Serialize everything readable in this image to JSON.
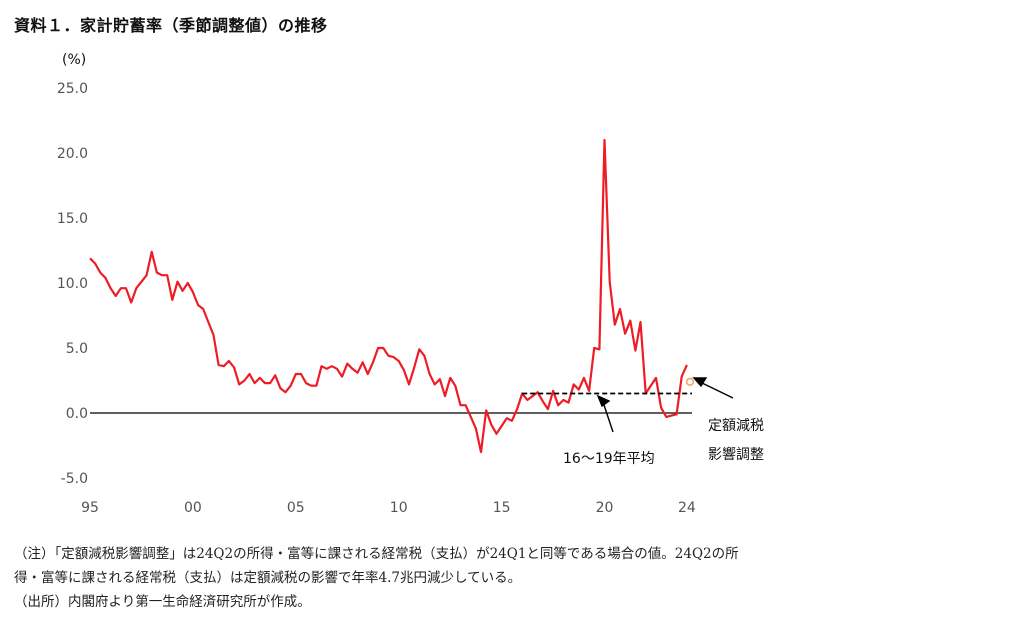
{
  "title": "資料１．家計貯蓄率（季節調整値）の推移",
  "notes": {
    "line1": "（注）「定額減税影響調整」は24Q2の所得・富等に課される経常税（支払）が24Q1と同等である場合の値。24Q2の所",
    "line2": "得・富等に課される経常税（支払）は定額減税の影響で年率4.7兆円減少している。",
    "line3": "（出所）内閣府より第一生命経済研究所が作成。"
  },
  "chart_data": {
    "type": "line",
    "ylabel": "(%)",
    "ylim": [
      -5,
      25
    ],
    "xlim": [
      1995,
      2024.25
    ],
    "y_ticks": [
      "25.0",
      "20.0",
      "15.0",
      "10.0",
      "5.0",
      "0.0",
      "-5.0"
    ],
    "y_tick_values": [
      25,
      20,
      15,
      10,
      5,
      0,
      -5
    ],
    "x_ticks": [
      "95",
      "00",
      "05",
      "10",
      "15",
      "20",
      "24"
    ],
    "x_tick_values": [
      1995,
      2000,
      2005,
      2010,
      2015,
      2020,
      2024
    ],
    "grid": false,
    "series_color": "#ee1c25",
    "zero_line_color": "#000000",
    "quarters_start": "1995Q1",
    "values": [
      11.9,
      11.5,
      10.8,
      10.4,
      9.6,
      9.0,
      9.6,
      9.6,
      8.5,
      9.6,
      10.1,
      10.6,
      12.4,
      10.8,
      10.6,
      10.6,
      8.7,
      10.1,
      9.4,
      10.0,
      9.3,
      8.3,
      8.0,
      7.0,
      6.0,
      3.7,
      3.6,
      4.0,
      3.5,
      2.2,
      2.5,
      3.0,
      2.3,
      2.7,
      2.3,
      2.3,
      2.9,
      1.9,
      1.6,
      2.1,
      3.0,
      3.0,
      2.3,
      2.1,
      2.1,
      3.6,
      3.4,
      3.6,
      3.4,
      2.8,
      3.8,
      3.4,
      3.1,
      3.9,
      3.0,
      3.9,
      5.0,
      5.0,
      4.4,
      4.3,
      4.0,
      3.3,
      2.2,
      3.5,
      4.9,
      4.4,
      3.0,
      2.2,
      2.6,
      1.3,
      2.7,
      2.1,
      0.6,
      0.6,
      -0.3,
      -1.2,
      -3.0,
      0.2,
      -0.9,
      -1.6,
      -1.0,
      -0.4,
      -0.6,
      0.3,
      1.5,
      1.0,
      1.3,
      1.6,
      0.9,
      0.3,
      1.7,
      0.6,
      1.0,
      0.8,
      2.2,
      1.8,
      2.7,
      1.7,
      5.0,
      4.9,
      21.0,
      10.1,
      6.8,
      8.0,
      6.1,
      7.1,
      4.8,
      7.0,
      1.5,
      2.1,
      2.7,
      0.4,
      -0.3,
      -0.2,
      -0.1,
      2.8,
      3.7
    ],
    "highlight_point": {
      "label": "定額減税影響調整",
      "x": 2024.25,
      "y": 2.4,
      "color": "#f4a460"
    },
    "average_line": {
      "label": "16〜19年平均",
      "x_start": 2016,
      "x_end": 2024.25,
      "y": 1.5
    },
    "annotations": {
      "avg_label": "16〜19年平均",
      "adj_label_line1": "定額減税",
      "adj_label_line2": "影響調整"
    }
  }
}
